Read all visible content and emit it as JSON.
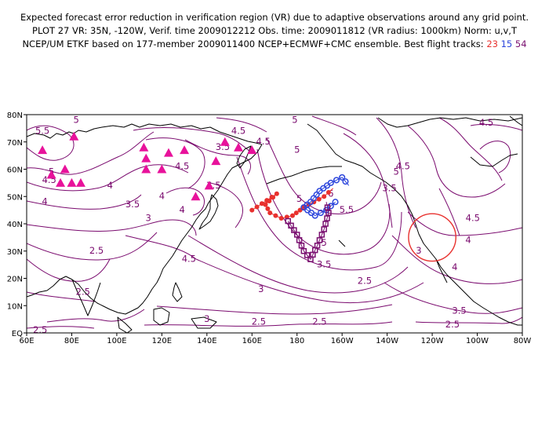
{
  "header": {
    "line1": "Expected forecast error reduction in verification region (VR) due to adaptive observations around any grid point.",
    "line2": "PLOT 27 VR: 35N, -120W, Verif. time 2009012212 Obs. time: 2009011812 (VR radius: 1000km) Norm: u,v,T",
    "line3_prefix": "NCEP/UM ETKF based on 177-member 2009011400 NCEP+ECMWF+CMC ensemble. Best flight tracks:",
    "track_ids": [
      {
        "id": "23",
        "color": "#e8312e"
      },
      {
        "id": "15",
        "color": "#2d46dc"
      },
      {
        "id": "54",
        "color": "#7a1070"
      }
    ]
  },
  "axes": {
    "x_labels": [
      "60E",
      "80E",
      "100E",
      "120E",
      "140E",
      "160E",
      "180",
      "160W",
      "140W",
      "120W",
      "100W",
      "80W"
    ],
    "y_labels": [
      "EQ",
      "10N",
      "20N",
      "30N",
      "40N",
      "50N",
      "60N",
      "70N",
      "80N"
    ],
    "lon_range": [
      60,
      280
    ],
    "lat_range": [
      0,
      80
    ]
  },
  "contour_labels": [
    {
      "text": "5.5",
      "lon": 67,
      "lat": 73
    },
    {
      "text": "5",
      "lon": 82,
      "lat": 77
    },
    {
      "text": "5",
      "lon": 71,
      "lat": 58
    },
    {
      "text": "4.5",
      "lon": 70,
      "lat": 55
    },
    {
      "text": "4",
      "lon": 68,
      "lat": 47
    },
    {
      "text": "3.5",
      "lon": 107,
      "lat": 46
    },
    {
      "text": "3",
      "lon": 114,
      "lat": 41
    },
    {
      "text": "2.5",
      "lon": 91,
      "lat": 29
    },
    {
      "text": "4.5",
      "lon": 129,
      "lat": 60
    },
    {
      "text": "4",
      "lon": 120,
      "lat": 49
    },
    {
      "text": "4",
      "lon": 129,
      "lat": 44
    },
    {
      "text": "3.5",
      "lon": 147,
      "lat": 67
    },
    {
      "text": "4.5",
      "lon": 154,
      "lat": 73
    },
    {
      "text": "4.5",
      "lon": 165,
      "lat": 69
    },
    {
      "text": "5",
      "lon": 179,
      "lat": 77
    },
    {
      "text": "5",
      "lon": 180,
      "lat": 66
    },
    {
      "text": "4.5",
      "lon": 143,
      "lat": 53
    },
    {
      "text": "4",
      "lon": 97,
      "lat": 53
    },
    {
      "text": "5",
      "lon": 181,
      "lat": 48
    },
    {
      "text": "6",
      "lon": 195,
      "lat": 50
    },
    {
      "text": "5.5",
      "lon": 202,
      "lat": 44
    },
    {
      "text": "5",
      "lon": 224,
      "lat": 58
    },
    {
      "text": "4.5",
      "lon": 227,
      "lat": 60
    },
    {
      "text": "3.5",
      "lon": 221,
      "lat": 52
    },
    {
      "text": "4.5",
      "lon": 264,
      "lat": 76
    },
    {
      "text": "4.5",
      "lon": 258,
      "lat": 41
    },
    {
      "text": "4",
      "lon": 256,
      "lat": 33
    },
    {
      "text": "5",
      "lon": 192,
      "lat": 32
    },
    {
      "text": "4.5",
      "lon": 132,
      "lat": 26
    },
    {
      "text": "3.5",
      "lon": 192,
      "lat": 24
    },
    {
      "text": "3",
      "lon": 234,
      "lat": 29
    },
    {
      "text": "3",
      "lon": 164,
      "lat": 15
    },
    {
      "text": "4",
      "lon": 250,
      "lat": 23
    },
    {
      "text": "2.5",
      "lon": 85,
      "lat": 14
    },
    {
      "text": "2.5",
      "lon": 210,
      "lat": 18
    },
    {
      "text": "3.5",
      "lon": 252,
      "lat": 7
    },
    {
      "text": "2.5",
      "lon": 163,
      "lat": 3
    },
    {
      "text": "2.5",
      "lon": 190,
      "lat": 3
    },
    {
      "text": "2.5",
      "lon": 249,
      "lat": 2
    },
    {
      "text": "3",
      "lon": 140,
      "lat": 4
    },
    {
      "text": "2.5",
      "lon": 66,
      "lat": 0
    }
  ],
  "observation_sites": [
    [
      67,
      67
    ],
    [
      81,
      72
    ],
    [
      71,
      58
    ],
    [
      77,
      60
    ],
    [
      75,
      55
    ],
    [
      80,
      55
    ],
    [
      84,
      55
    ],
    [
      112,
      68
    ],
    [
      113,
      64
    ],
    [
      113,
      60
    ],
    [
      120,
      60
    ],
    [
      123,
      66
    ],
    [
      130,
      67
    ],
    [
      148,
      70
    ],
    [
      154,
      68
    ],
    [
      160,
      67
    ],
    [
      144,
      63
    ],
    [
      135,
      50
    ],
    [
      141,
      54
    ]
  ],
  "verification_region": {
    "center_lon": 240,
    "center_lat": 35,
    "radius_deg": 10.5
  },
  "flight_tracks": [
    {
      "id": "23",
      "marker": "dot",
      "color": "#e8312e",
      "points": [
        [
          160,
          45
        ],
        [
          171,
          51
        ],
        [
          166,
          47
        ],
        [
          168,
          44
        ],
        [
          173,
          42
        ],
        [
          178,
          43
        ],
        [
          183,
          46
        ],
        [
          192,
          50
        ],
        [
          196,
          53
        ]
      ]
    },
    {
      "id": "15",
      "marker": "circle",
      "color": "#2d46dc",
      "points": [
        [
          197,
          48
        ],
        [
          193,
          45
        ],
        [
          188,
          43
        ],
        [
          183,
          46
        ],
        [
          186,
          48
        ],
        [
          190,
          52
        ],
        [
          195,
          55
        ],
        [
          200,
          57
        ],
        [
          203,
          54
        ]
      ]
    },
    {
      "id": "54",
      "marker": "square",
      "color": "#7a1070",
      "points": [
        [
          176,
          41
        ],
        [
          180,
          36
        ],
        [
          183,
          30
        ],
        [
          186,
          27
        ],
        [
          189,
          32
        ],
        [
          192,
          38
        ],
        [
          194,
          44
        ],
        [
          193,
          48
        ]
      ]
    }
  ],
  "colors": {
    "contour": "#7a0a6e",
    "coast": "#000000",
    "marker": "#e8129b",
    "vr_circle": "#e8312e"
  }
}
